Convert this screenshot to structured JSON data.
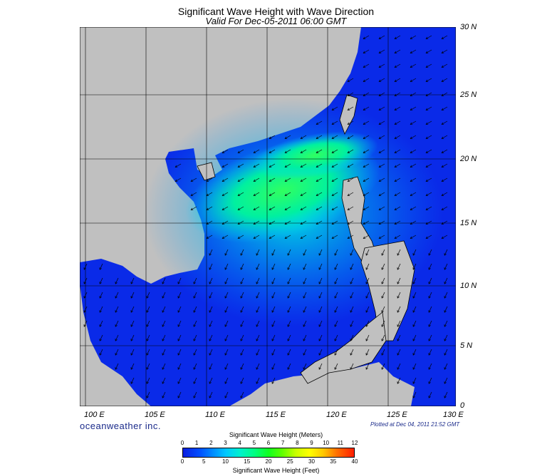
{
  "title": "Significant Wave Height with Wave Direction",
  "subtitle": "Valid For Dec-05-2011 06:00 GMT",
  "lat_labels": [
    "30 N",
    "25 N",
    "20 N",
    "15 N",
    "10 N",
    "5 N",
    "0"
  ],
  "lon_labels": [
    "100 E",
    "105 E",
    "110 E",
    "115 E",
    "120 E",
    "125 E",
    "130 E"
  ],
  "brand": "oceanweather inc.",
  "plotted": "Plotted at Dec 04, 2011 21:52 GMT",
  "colorbar": {
    "title_meters": "Significant Wave Height (Meters)",
    "title_feet": "Significant Wave Height (Feet)",
    "meters_ticks": [
      "0",
      "1",
      "2",
      "3",
      "4",
      "5",
      "6",
      "7",
      "8",
      "9",
      "10",
      "11",
      "12"
    ],
    "feet_ticks": [
      "0",
      "5",
      "10",
      "15",
      "20",
      "25",
      "30",
      "35",
      "40"
    ]
  },
  "colors": {
    "land": "#c0c0c0",
    "deep": "#0a1ee0",
    "mid": "#0090ff",
    "high": "#00ff80",
    "grid": "#000000"
  },
  "map_extent": {
    "lon_min": 99,
    "lon_max": 130,
    "lat_min": 0,
    "lat_max": 31
  }
}
